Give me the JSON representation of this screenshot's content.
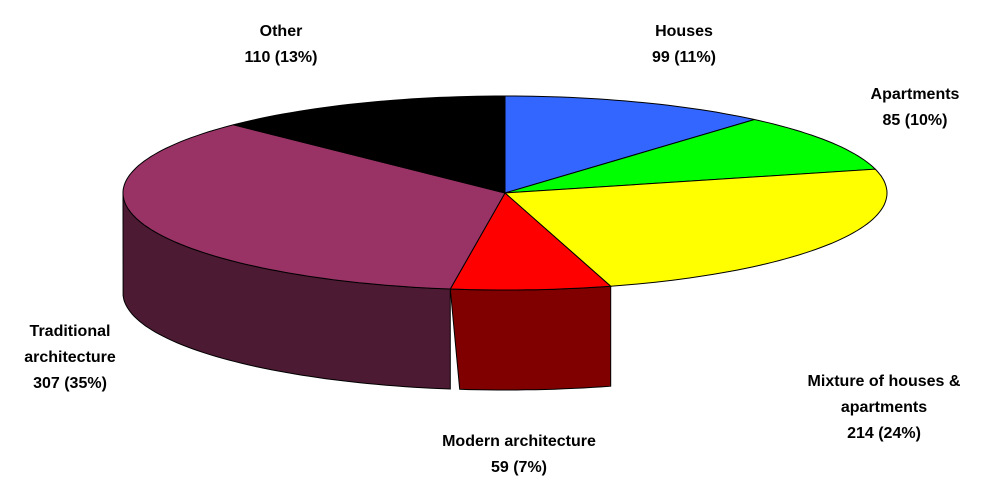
{
  "chart_data": {
    "type": "pie3d",
    "categories": [
      "Houses",
      "Apartments",
      "Mixture of houses & apartments",
      "Modern architecture",
      "Traditional architecture",
      "Other"
    ],
    "values": [
      99,
      85,
      214,
      59,
      307,
      110
    ],
    "value_labels": [
      "99 (11%)",
      "85 (10%)",
      "214 (24%)",
      "59 (7%)",
      "307 (35%)",
      "110 (13%)"
    ],
    "colors": [
      "#3366ff",
      "#00ff00",
      "#ffff00",
      "#ff0000",
      "#993366",
      "#000000"
    ],
    "side_colors": [
      "#1a3380",
      "#008000",
      "#808000",
      "#800000",
      "#4d1a33",
      "#000000"
    ]
  }
}
